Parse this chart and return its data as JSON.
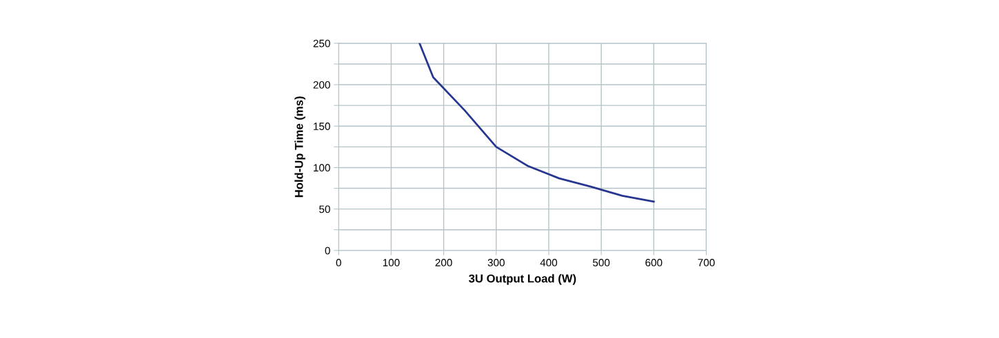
{
  "chart_data": {
    "type": "line",
    "xlabel": "3U Output Load (W)",
    "ylabel": "Hold-Up Time (ms)",
    "x": [
      154,
      180,
      240,
      300,
      360,
      420,
      480,
      540,
      600
    ],
    "series": [
      {
        "color": "#27378f",
        "values": [
          250,
          209,
          169,
          125,
          102,
          87,
          77,
          66,
          59
        ]
      }
    ],
    "xlim": [
      0,
      700
    ],
    "xticks": [
      0,
      100,
      200,
      300,
      400,
      500,
      600,
      700
    ],
    "ylim": [
      0,
      250
    ],
    "yticks": [
      0,
      {
        "value": 25,
        "label": null
      },
      50,
      {
        "value": 75,
        "label": null
      },
      100,
      {
        "value": 125,
        "label": null
      },
      150,
      {
        "value": 175,
        "label": null
      },
      200,
      {
        "value": 225,
        "label": null
      },
      250
    ],
    "grid": true,
    "marker": "none",
    "line_style": "solid"
  }
}
